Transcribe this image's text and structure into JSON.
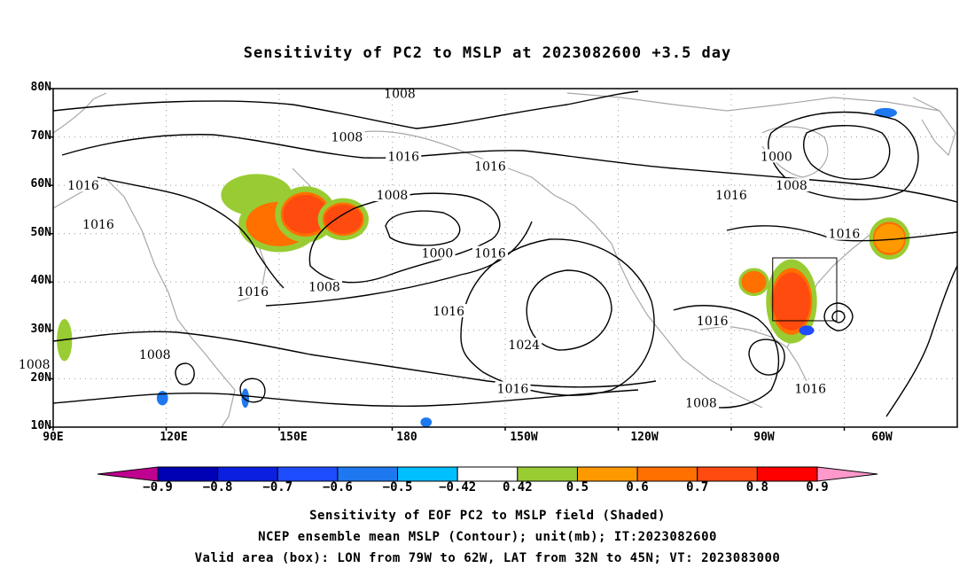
{
  "title": "Sensitivity of PC2 to MSLP at 2023082600 +3.5 day",
  "map": {
    "lat_labels": [
      "80N",
      "70N",
      "60N",
      "50N",
      "40N",
      "30N",
      "20N",
      "10N"
    ],
    "lon_labels": [
      "90E",
      "120E",
      "150E",
      "180",
      "150W",
      "120W",
      "90W",
      "60W"
    ],
    "contour_unit": "mb",
    "contour_labels": [
      {
        "text": "1008",
        "lon": 182,
        "lat": 79
      },
      {
        "text": "1008",
        "lon": 168,
        "lat": 70
      },
      {
        "text": "1016",
        "lon": 98,
        "lat": 60
      },
      {
        "text": "1016",
        "lon": 183,
        "lat": 66
      },
      {
        "text": "1016",
        "lon": -154,
        "lat": 64
      },
      {
        "text": "1016",
        "lon": -90,
        "lat": 58
      },
      {
        "text": "1000",
        "lon": -78,
        "lat": 66
      },
      {
        "text": "1008",
        "lon": -74,
        "lat": 60
      },
      {
        "text": "1008",
        "lon": 180,
        "lat": 58
      },
      {
        "text": "1016",
        "lon": 102,
        "lat": 52
      },
      {
        "text": "1000",
        "lon": 192,
        "lat": 46
      },
      {
        "text": "1016",
        "lon": 206,
        "lat": 46
      },
      {
        "text": "1016",
        "lon": -60,
        "lat": 50
      },
      {
        "text": "1008",
        "lon": 162,
        "lat": 39
      },
      {
        "text": "1016",
        "lon": 143,
        "lat": 38
      },
      {
        "text": "1016",
        "lon": 195,
        "lat": 34
      },
      {
        "text": "1024",
        "lon": 215,
        "lat": 27
      },
      {
        "text": "1016",
        "lon": -95,
        "lat": 32
      },
      {
        "text": "1008",
        "lon": 117,
        "lat": 25
      },
      {
        "text": "1008",
        "lon": 85,
        "lat": 23
      },
      {
        "text": "1016",
        "lon": 212,
        "lat": 18
      },
      {
        "text": "1008",
        "lon": -98,
        "lat": 15
      },
      {
        "text": "1016",
        "lon": -69,
        "lat": 18
      }
    ],
    "sensitivity_patches": [
      {
        "lon": 144,
        "lat": 58,
        "rx": 7,
        "ry": 3,
        "level": 0.5
      },
      {
        "lon": 150,
        "lat": 52,
        "rx": 8,
        "ry": 4,
        "level": 0.7
      },
      {
        "lon": 157,
        "lat": 54,
        "rx": 6,
        "ry": 4,
        "level": 0.8
      },
      {
        "lon": 167,
        "lat": 53,
        "rx": 5,
        "ry": 3,
        "level": 0.8
      },
      {
        "lon": -84,
        "lat": 40,
        "rx": 3,
        "ry": 2,
        "level": 0.7
      },
      {
        "lon": -74,
        "lat": 36,
        "rx": 5,
        "ry": 6,
        "level": 0.8
      },
      {
        "lon": -48,
        "lat": 49,
        "rx": 4,
        "ry": 3,
        "level": 0.6
      },
      {
        "lon": 93,
        "lat": 28,
        "rx": 1.5,
        "ry": 3,
        "level": 0.5
      },
      {
        "lon": 119,
        "lat": 16,
        "rx": 1.5,
        "ry": 1.5,
        "level": -0.5
      },
      {
        "lon": 141,
        "lat": 16,
        "rx": 1,
        "ry": 2,
        "level": -0.5
      },
      {
        "lon": -70,
        "lat": 30,
        "rx": 2,
        "ry": 1,
        "level": -0.6
      },
      {
        "lon": -49,
        "lat": 75,
        "rx": 3,
        "ry": 1,
        "level": -0.5
      },
      {
        "lon": 189,
        "lat": 11,
        "rx": 1.5,
        "ry": 1,
        "level": -0.5
      }
    ],
    "valid_box": {
      "lon_min": -79,
      "lon_max": -62,
      "lat_min": 32,
      "lat_max": 45
    },
    "colors": {
      "n09": "#c0008f",
      "n08": "#0000b4",
      "n07": "#0a1fe0",
      "n06": "#1e4cff",
      "n05": "#1e78f0",
      "n042": "#00bfff",
      "p042": "#ffffff",
      "p05": "#99cc33",
      "p06": "#ff9900",
      "p07": "#ff7000",
      "p08": "#ff4a10",
      "p09": "#ff0000",
      "p10": "#ff99cc"
    }
  },
  "colorbar": {
    "labels": [
      "−0.9",
      "−0.8",
      "−0.7",
      "−0.6",
      "−0.5",
      "−0.42",
      "0.42",
      "0.5",
      "0.6",
      "0.7",
      "0.8",
      "0.9"
    ],
    "bins": [
      "#0000b4",
      "#0a1fe0",
      "#1e4cff",
      "#1e78f0",
      "#00bfff",
      "#ffffff",
      "#99cc33",
      "#ff9900",
      "#ff7000",
      "#ff4a10",
      "#ff0000"
    ],
    "left_cap": "#c0008f",
    "right_cap": "#ff99cc"
  },
  "footer": {
    "line1": "Sensitivity of EOF PC2 to MSLP field (Shaded)",
    "line2": "NCEP ensemble mean MSLP (Contour); unit(mb); IT:2023082600",
    "line3": "Valid area (box): LON from 79W to 62W, LAT from 32N to 45N; VT: 2023083000"
  }
}
